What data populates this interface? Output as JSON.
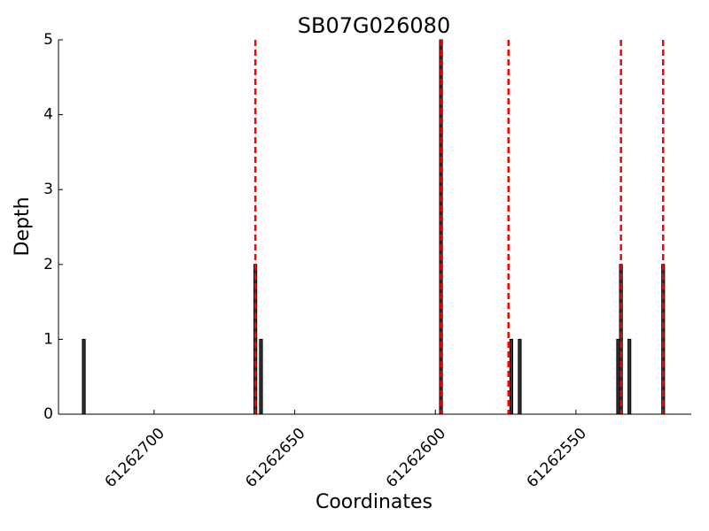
{
  "chart_data": {
    "type": "bar",
    "title": "SB07G026080",
    "x_label": "Coordinates",
    "y_label": "Depth",
    "x": [
      61262725,
      61262664,
      61262662,
      61262598,
      61262573,
      61262570,
      61262535,
      61262534,
      61262531,
      61262519
    ],
    "values": [
      1,
      2,
      1,
      5,
      1,
      1,
      1,
      2,
      1,
      2
    ],
    "color": "#333333",
    "vlines": [
      61262664,
      61262598,
      61262574,
      61262534,
      61262519
    ],
    "vline_color": "#ff0000",
    "xlim": [
      61262734,
      61262509
    ],
    "xticks": [
      61262700,
      61262650,
      61262600,
      61262550
    ],
    "ylim": [
      0,
      5
    ],
    "yticks": [
      0,
      1,
      2,
      3,
      4,
      5
    ]
  }
}
